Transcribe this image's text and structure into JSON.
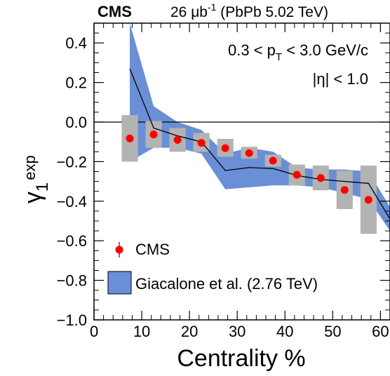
{
  "header": {
    "experiment": "CMS",
    "lumi_value": "26 ",
    "lumi_unit": "μb",
    "lumi_exp": "-1",
    "system": " (PbPb 5.02 TeV)"
  },
  "annotations": {
    "pt_lo": "0.3 < p",
    "pt_sub": "T",
    "pt_hi": " < 3.0 GeV/c",
    "eta": "|η| < 1.0"
  },
  "legend": {
    "cms_label": "CMS",
    "model_label": "Giacalone et al. (2.76 TeV)"
  },
  "colors": {
    "cms_marker": "#ff0000",
    "syst_box": "#b3b3b3",
    "model_band": "#6b8fd6",
    "model_line": "#000000",
    "frame": "#000000"
  },
  "chart_data": {
    "type": "scatter",
    "xlabel": "Centrality %",
    "ylabel_main": "γ",
    "ylabel_sub": "1",
    "ylabel_sup": "exp",
    "xlim": [
      0,
      62
    ],
    "ylim": [
      -1.0,
      0.5
    ],
    "xticks": [
      0,
      10,
      20,
      30,
      40,
      50,
      60
    ],
    "yticks": [
      -1.0,
      -0.8,
      -0.6,
      -0.4,
      -0.2,
      0.0,
      0.2,
      0.4
    ],
    "ytick_labels": [
      "−1.0",
      "−0.8",
      "−0.6",
      "−0.4",
      "−0.2",
      "0.0",
      "0.2",
      "0.4"
    ],
    "reference_line": 0.0,
    "series": [
      {
        "name": "CMS",
        "x": [
          7.5,
          12.5,
          17.5,
          22.5,
          27.5,
          32.5,
          37.5,
          42.5,
          47.5,
          52.5,
          57.5
        ],
        "y": [
          -0.083,
          -0.063,
          -0.09,
          -0.105,
          -0.132,
          -0.157,
          -0.195,
          -0.267,
          -0.283,
          -0.343,
          -0.393
        ],
        "syst_low": [
          -0.2,
          -0.13,
          -0.15,
          -0.15,
          -0.175,
          -0.185,
          -0.225,
          -0.32,
          -0.345,
          -0.44,
          -0.565
        ],
        "syst_high": [
          0.035,
          0.005,
          -0.03,
          -0.055,
          -0.085,
          -0.125,
          -0.165,
          -0.215,
          -0.22,
          -0.245,
          -0.22
        ]
      },
      {
        "name": "Giacalone et al. (2.76 TeV)",
        "x": [
          7.5,
          12.5,
          17.5,
          22.5,
          27.5,
          32.5,
          37.5,
          42.5,
          47.5,
          52.5,
          57.5,
          62
        ],
        "y": [
          0.27,
          -0.03,
          -0.07,
          -0.1,
          -0.245,
          -0.23,
          -0.235,
          -0.27,
          -0.29,
          -0.3,
          -0.31,
          -0.49
        ],
        "band_low": [
          -0.2,
          -0.13,
          -0.13,
          -0.16,
          -0.34,
          -0.33,
          -0.32,
          -0.32,
          -0.33,
          -0.36,
          -0.39,
          -0.55
        ],
        "band_high": [
          0.5,
          0.08,
          0.0,
          -0.04,
          -0.16,
          -0.13,
          -0.15,
          -0.23,
          -0.24,
          -0.24,
          -0.25,
          -0.43
        ]
      }
    ]
  }
}
